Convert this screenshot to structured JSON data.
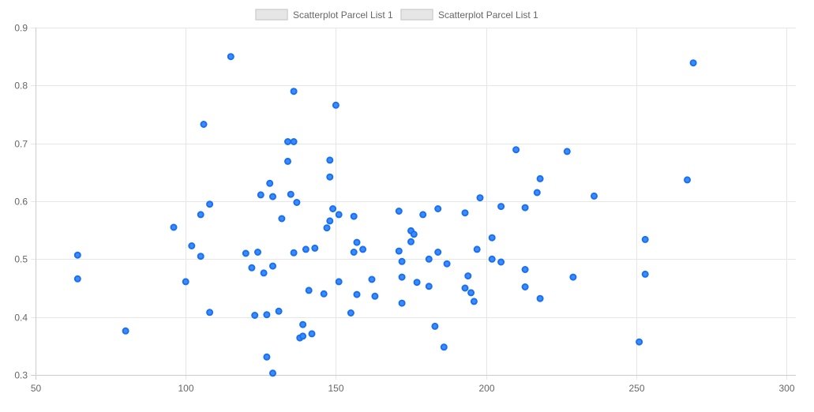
{
  "chart_data": {
    "type": "scatter",
    "legend": {
      "position": "top",
      "entries": [
        "Scatterplot Parcel List 1",
        "Scatterplot Parcel List 1"
      ]
    },
    "xlim": [
      50,
      300
    ],
    "ylim": [
      0.3,
      0.9
    ],
    "x_ticks": [
      50,
      100,
      150,
      200,
      250,
      300
    ],
    "y_ticks": [
      0.3,
      0.4,
      0.5,
      0.6,
      0.7,
      0.8,
      0.9
    ],
    "x_tick_labels": [
      "50",
      "100",
      "150",
      "200",
      "250",
      "300"
    ],
    "y_tick_labels": [
      "0.3",
      "0.4",
      "0.5",
      "0.6",
      "0.7",
      "0.8",
      "0.9"
    ],
    "grid": true,
    "point_color": "#1a6ff2",
    "point_fill": "#3b8dff",
    "series": [
      {
        "points": [
          [
            64,
            0.507
          ],
          [
            64,
            0.466
          ],
          [
            80,
            0.376
          ],
          [
            96,
            0.555
          ],
          [
            100,
            0.461
          ],
          [
            102,
            0.523
          ],
          [
            105,
            0.505
          ],
          [
            105,
            0.577
          ],
          [
            106,
            0.733
          ],
          [
            108,
            0.595
          ],
          [
            108,
            0.408
          ],
          [
            115,
            0.85
          ],
          [
            120,
            0.51
          ],
          [
            122,
            0.485
          ],
          [
            123,
            0.403
          ],
          [
            124,
            0.512
          ],
          [
            125,
            0.611
          ],
          [
            126,
            0.476
          ],
          [
            127,
            0.404
          ],
          [
            127,
            0.331
          ],
          [
            128,
            0.631
          ],
          [
            129,
            0.608
          ],
          [
            129,
            0.488
          ],
          [
            129,
            0.303
          ],
          [
            131,
            0.41
          ],
          [
            132,
            0.57
          ],
          [
            134,
            0.703
          ],
          [
            134,
            0.669
          ],
          [
            135,
            0.612
          ],
          [
            136,
            0.79
          ],
          [
            136,
            0.703
          ],
          [
            136,
            0.511
          ],
          [
            137,
            0.598
          ],
          [
            138,
            0.364
          ],
          [
            139,
            0.387
          ],
          [
            139,
            0.367
          ],
          [
            140,
            0.517
          ],
          [
            141,
            0.446
          ],
          [
            142,
            0.371
          ],
          [
            143,
            0.519
          ],
          [
            146,
            0.44
          ],
          [
            147,
            0.554
          ],
          [
            148,
            0.671
          ],
          [
            148,
            0.642
          ],
          [
            148,
            0.566
          ],
          [
            149,
            0.587
          ],
          [
            150,
            0.766
          ],
          [
            151,
            0.577
          ],
          [
            151,
            0.461
          ],
          [
            155,
            0.407
          ],
          [
            156,
            0.512
          ],
          [
            156,
            0.574
          ],
          [
            157,
            0.529
          ],
          [
            157,
            0.439
          ],
          [
            159,
            0.517
          ],
          [
            162,
            0.465
          ],
          [
            163,
            0.436
          ],
          [
            171,
            0.583
          ],
          [
            171,
            0.514
          ],
          [
            172,
            0.496
          ],
          [
            172,
            0.469
          ],
          [
            172,
            0.424
          ],
          [
            175,
            0.549
          ],
          [
            175,
            0.53
          ],
          [
            176,
            0.543
          ],
          [
            177,
            0.46
          ],
          [
            179,
            0.577
          ],
          [
            181,
            0.5
          ],
          [
            181,
            0.453
          ],
          [
            183,
            0.384
          ],
          [
            184,
            0.587
          ],
          [
            184,
            0.512
          ],
          [
            186,
            0.348
          ],
          [
            187,
            0.492
          ],
          [
            193,
            0.58
          ],
          [
            193,
            0.45
          ],
          [
            194,
            0.471
          ],
          [
            195,
            0.442
          ],
          [
            196,
            0.427
          ],
          [
            197,
            0.517
          ],
          [
            198,
            0.606
          ],
          [
            202,
            0.537
          ],
          [
            202,
            0.5
          ],
          [
            205,
            0.591
          ],
          [
            205,
            0.495
          ],
          [
            210,
            0.689
          ],
          [
            213,
            0.589
          ],
          [
            213,
            0.482
          ],
          [
            213,
            0.452
          ],
          [
            217,
            0.615
          ],
          [
            218,
            0.639
          ],
          [
            218,
            0.432
          ],
          [
            227,
            0.686
          ],
          [
            229,
            0.469
          ],
          [
            236,
            0.609
          ],
          [
            251,
            0.357
          ],
          [
            253,
            0.534
          ],
          [
            253,
            0.474
          ],
          [
            267,
            0.637
          ],
          [
            269,
            0.839
          ]
        ]
      }
    ]
  }
}
